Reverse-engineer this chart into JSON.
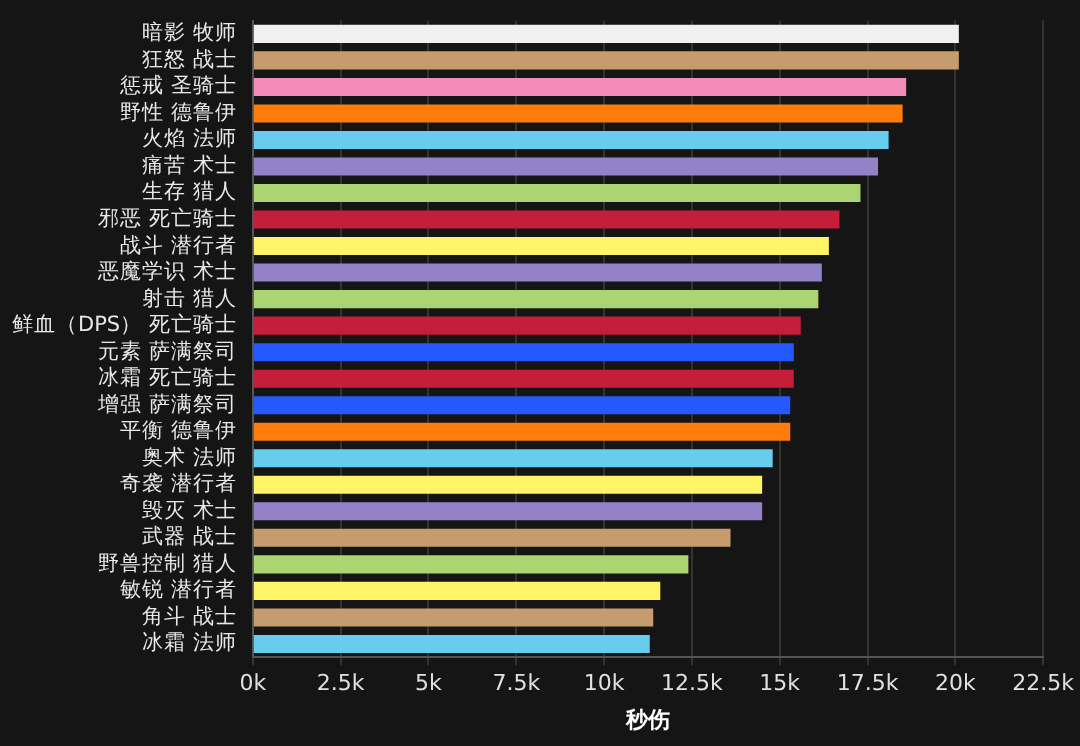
{
  "chart_data": {
    "type": "bar",
    "orientation": "horizontal",
    "xlabel": "秒伤",
    "categories": [
      "暗影 牧师",
      "狂怒 战士",
      "惩戒 圣骑士",
      "野性 德鲁伊",
      "火焰 法师",
      "痛苦 术士",
      "生存 猎人",
      "邪恶 死亡骑士",
      "战斗 潜行者",
      "恶魔学识 术士",
      "射击 猎人",
      "鲜血（DPS） 死亡骑士",
      "元素 萨满祭司",
      "冰霜 死亡骑士",
      "增强 萨满祭司",
      "平衡 德鲁伊",
      "奥术 法师",
      "奇袭 潜行者",
      "毁灭 术士",
      "武器 战士",
      "野兽控制 猎人",
      "敏锐 潜行者",
      "角斗 战士",
      "冰霜 法师"
    ],
    "values": [
      20.1,
      20.1,
      18.6,
      18.5,
      18.1,
      17.8,
      17.3,
      16.7,
      16.4,
      16.2,
      16.1,
      15.6,
      15.4,
      15.4,
      15.3,
      15.3,
      14.8,
      14.5,
      14.5,
      13.6,
      12.4,
      11.6,
      11.4,
      11.3
    ],
    "colors": [
      "#f0f0f0",
      "#c69b6d",
      "#f48cba",
      "#ff7c0a",
      "#68ccef",
      "#9482c9",
      "#abd473",
      "#c41e3a",
      "#fff468",
      "#9482c9",
      "#abd473",
      "#c41e3a",
      "#2459ff",
      "#c41e3a",
      "#2459ff",
      "#ff7c0a",
      "#68ccef",
      "#fff468",
      "#9482c9",
      "#c69b6d",
      "#abd473",
      "#fff468",
      "#c69b6d",
      "#68ccef"
    ],
    "xlim": [
      0,
      22.5
    ],
    "xticks": [
      {
        "value": 0,
        "label": "0k"
      },
      {
        "value": 2.5,
        "label": "2.5k"
      },
      {
        "value": 5,
        "label": "5k"
      },
      {
        "value": 7.5,
        "label": "7.5k"
      },
      {
        "value": 10,
        "label": "10k"
      },
      {
        "value": 12.5,
        "label": "12.5k"
      },
      {
        "value": 15,
        "label": "15k"
      },
      {
        "value": 17.5,
        "label": "17.5k"
      },
      {
        "value": 20,
        "label": "20k"
      },
      {
        "value": 22.5,
        "label": "22.5k"
      }
    ],
    "grid": "x",
    "legend": false
  }
}
